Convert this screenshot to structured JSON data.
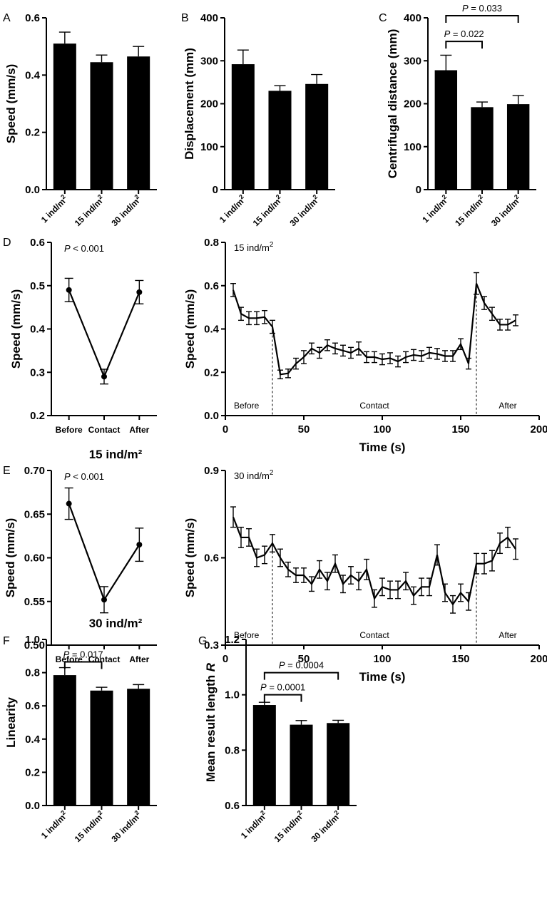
{
  "figure": {
    "subtitles": {
      "row_E": "15 ind/m²",
      "row_F": "30 ind/m²"
    }
  },
  "chart_data": [
    {
      "id": "A",
      "type": "bar",
      "panel_letter": "A",
      "categories": [
        "1 ind/m²",
        "15 ind/m²",
        "30 ind/m²"
      ],
      "values": [
        0.51,
        0.445,
        0.465
      ],
      "errors": [
        0.04,
        0.025,
        0.035
      ],
      "ylabel": "Speed (mm/s)",
      "ylim": [
        0,
        0.6
      ],
      "yticks": [
        0,
        0.2,
        0.4,
        0.6
      ],
      "ytick_labels": [
        "0.0",
        "0.2",
        "0.4",
        "0.6"
      ],
      "annotations": []
    },
    {
      "id": "B",
      "type": "bar",
      "panel_letter": "B",
      "categories": [
        "1 ind/m²",
        "15 ind/m²",
        "30 ind/m²"
      ],
      "values": [
        292,
        230,
        246
      ],
      "errors": [
        33,
        12,
        22
      ],
      "ylabel": "Displacement (mm)",
      "ylim": [
        0,
        400
      ],
      "yticks": [
        0,
        100,
        200,
        300,
        400
      ],
      "ytick_labels": [
        "0",
        "100",
        "200",
        "300",
        "400"
      ],
      "annotations": []
    },
    {
      "id": "C",
      "type": "bar",
      "panel_letter": "C",
      "categories": [
        "1 ind/m²",
        "15 ind/m²",
        "30 ind/m²"
      ],
      "values": [
        278,
        192,
        199
      ],
      "errors": [
        35,
        12,
        20
      ],
      "ylabel": "Centrifugal distance (mm)",
      "ylim": [
        0,
        400
      ],
      "yticks": [
        0,
        100,
        200,
        300,
        400
      ],
      "ytick_labels": [
        "0",
        "100",
        "200",
        "300",
        "400"
      ],
      "annotations": [
        {
          "p": "P",
          "text": " = 0.022",
          "from": 0,
          "to": 1,
          "level": 345
        },
        {
          "p": "P",
          "text": " = 0.033",
          "from": 0,
          "to": 2,
          "level": 405
        }
      ]
    },
    {
      "id": "D_left",
      "type": "line",
      "panel_letter": "D",
      "categories": [
        "Before",
        "Contact",
        "After"
      ],
      "values": [
        0.49,
        0.29,
        0.485
      ],
      "errors": [
        0.027,
        0.017,
        0.027
      ],
      "ylabel": "Speed (mm/s)",
      "ylim": [
        0.2,
        0.6
      ],
      "yticks": [
        0.2,
        0.3,
        0.4,
        0.5,
        0.6
      ],
      "ytick_labels": [
        "0.2",
        "0.3",
        "0.4",
        "0.5",
        "0.6"
      ],
      "stat_p": "P",
      "stat_text": " < 0.001"
    },
    {
      "id": "D_right",
      "type": "line",
      "series_label": "15 ind/m²",
      "xlabel": "Time (s)",
      "ylabel": "Speed (mm/s)",
      "xlim": [
        0,
        200
      ],
      "ylim": [
        0,
        0.8
      ],
      "xticks": [
        0,
        50,
        100,
        150,
        200
      ],
      "yticks": [
        0,
        0.2,
        0.4,
        0.6,
        0.8
      ],
      "ytick_labels": [
        "0.0",
        "0.2",
        "0.4",
        "0.6",
        "0.8"
      ],
      "phase_lines": [
        30,
        160
      ],
      "phase_labels": [
        "Before",
        "Contact",
        "After"
      ],
      "x": [
        5,
        10,
        15,
        20,
        25,
        30,
        35,
        40,
        45,
        50,
        55,
        60,
        65,
        70,
        75,
        80,
        85,
        90,
        95,
        100,
        105,
        110,
        115,
        120,
        125,
        130,
        135,
        140,
        145,
        150,
        155,
        160,
        165,
        170,
        175,
        180,
        185
      ],
      "y": [
        0.58,
        0.47,
        0.45,
        0.45,
        0.455,
        0.41,
        0.19,
        0.195,
        0.24,
        0.27,
        0.31,
        0.29,
        0.325,
        0.31,
        0.3,
        0.29,
        0.31,
        0.27,
        0.27,
        0.26,
        0.265,
        0.25,
        0.27,
        0.28,
        0.275,
        0.29,
        0.285,
        0.275,
        0.275,
        0.33,
        0.24,
        0.61,
        0.52,
        0.47,
        0.42,
        0.42,
        0.44
      ],
      "err": [
        0.03,
        0.03,
        0.03,
        0.03,
        0.03,
        0.03,
        0.02,
        0.02,
        0.025,
        0.03,
        0.025,
        0.025,
        0.025,
        0.025,
        0.025,
        0.025,
        0.03,
        0.025,
        0.025,
        0.025,
        0.025,
        0.025,
        0.025,
        0.025,
        0.025,
        0.025,
        0.025,
        0.025,
        0.025,
        0.025,
        0.025,
        0.05,
        0.03,
        0.03,
        0.025,
        0.025,
        0.025
      ]
    },
    {
      "id": "E_left",
      "type": "line",
      "panel_letter": "E",
      "categories": [
        "Before",
        "Contact",
        "After"
      ],
      "values": [
        0.662,
        0.552,
        0.615
      ],
      "errors": [
        0.018,
        0.015,
        0.019
      ],
      "ylabel": "Speed (mm/s)",
      "ylim": [
        0.5,
        0.7
      ],
      "yticks": [
        0.5,
        0.55,
        0.6,
        0.65,
        0.7
      ],
      "ytick_labels": [
        "0.50",
        "0.55",
        "0.60",
        "0.65",
        "0.70"
      ],
      "stat_p": "P",
      "stat_text": " < 0.001"
    },
    {
      "id": "E_right",
      "type": "line",
      "series_label": "30 ind/m²",
      "xlabel": "Time (s)",
      "ylabel": "Speed (mm/s)",
      "xlim": [
        0,
        200
      ],
      "ylim": [
        0.3,
        0.9
      ],
      "xticks": [
        0,
        50,
        100,
        150,
        200
      ],
      "yticks": [
        0.3,
        0.6,
        0.9
      ],
      "ytick_labels": [
        "0.3",
        "0.6",
        "0.9"
      ],
      "phase_lines": [
        30,
        160
      ],
      "phase_labels": [
        "Before",
        "Contact",
        "After"
      ],
      "x": [
        5,
        10,
        15,
        20,
        25,
        30,
        35,
        40,
        45,
        50,
        55,
        60,
        65,
        70,
        75,
        80,
        85,
        90,
        95,
        100,
        105,
        110,
        115,
        120,
        125,
        130,
        135,
        140,
        145,
        150,
        155,
        160,
        165,
        170,
        175,
        180,
        185
      ],
      "y": [
        0.74,
        0.67,
        0.67,
        0.6,
        0.61,
        0.65,
        0.6,
        0.56,
        0.54,
        0.54,
        0.51,
        0.56,
        0.52,
        0.58,
        0.51,
        0.54,
        0.52,
        0.56,
        0.46,
        0.5,
        0.49,
        0.49,
        0.52,
        0.47,
        0.5,
        0.5,
        0.61,
        0.48,
        0.44,
        0.48,
        0.45,
        0.58,
        0.58,
        0.59,
        0.65,
        0.67,
        0.63
      ],
      "err": [
        0.035,
        0.035,
        0.03,
        0.03,
        0.03,
        0.03,
        0.03,
        0.025,
        0.025,
        0.025,
        0.025,
        0.03,
        0.03,
        0.03,
        0.03,
        0.03,
        0.03,
        0.035,
        0.03,
        0.03,
        0.03,
        0.03,
        0.03,
        0.03,
        0.03,
        0.03,
        0.035,
        0.03,
        0.03,
        0.03,
        0.03,
        0.035,
        0.035,
        0.035,
        0.035,
        0.035,
        0.035
      ]
    },
    {
      "id": "F",
      "type": "bar",
      "panel_letter": "F",
      "categories": [
        "1 ind/m²",
        "15 ind/m²",
        "30 ind/m²"
      ],
      "values": [
        0.785,
        0.692,
        0.703
      ],
      "errors": [
        0.045,
        0.02,
        0.025
      ],
      "ylabel": "Linearity",
      "ylim": [
        0,
        1.0
      ],
      "yticks": [
        0,
        0.2,
        0.4,
        0.6,
        0.8,
        1.0
      ],
      "ytick_labels": [
        "0.0",
        "0.2",
        "0.4",
        "0.6",
        "0.8",
        "1.0"
      ],
      "annotations": [
        {
          "p": "P",
          "text": " = 0.017",
          "from": 0,
          "to": 1,
          "level": 0.865
        }
      ]
    },
    {
      "id": "G",
      "type": "bar",
      "panel_letter": "G",
      "categories": [
        "1 ind/m²",
        "15 ind/m²",
        "30 ind/m²"
      ],
      "values": [
        0.963,
        0.892,
        0.898
      ],
      "errors": [
        0.01,
        0.015,
        0.01
      ],
      "ylabel": "Mean result length R",
      "ylim": [
        0.6,
        1.2
      ],
      "yticks": [
        0.6,
        0.8,
        1.0,
        1.2
      ],
      "ytick_labels": [
        "0.6",
        "0.8",
        "1.0",
        "1.2"
      ],
      "annotations": [
        {
          "p": "P",
          "text": " = 0.0001",
          "from": 0,
          "to": 1,
          "level": 1.0
        },
        {
          "p": "P",
          "text": " = 0.0004",
          "from": 0,
          "to": 2,
          "level": 1.08
        }
      ]
    }
  ]
}
